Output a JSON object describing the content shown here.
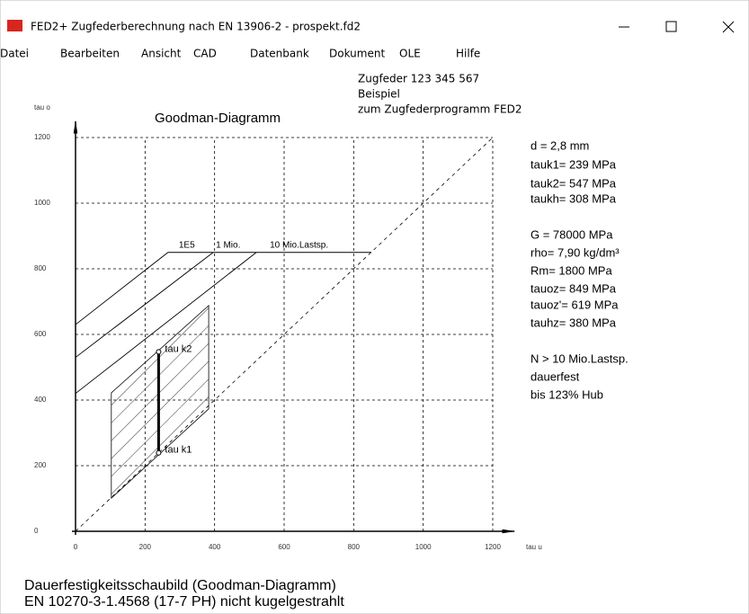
{
  "window": {
    "title": "FED2+  Zugfederberechnung nach EN 13906-2  -  prospekt.fd2"
  },
  "menu": [
    "Datei",
    "Bearbeiten",
    "Ansicht",
    "CAD",
    "Datenbank",
    "Dokument",
    "OLE",
    "Hilfe"
  ],
  "header_lines": [
    "Zugfeder  123 345 567",
    "Beispiel",
    "zum Zugfederprogramm FED2"
  ],
  "chart_data": {
    "type": "line",
    "title": "Goodman-Diagramm",
    "x_label": "tau u",
    "y_label": "tau o",
    "xlim": [
      0,
      1200
    ],
    "ylim": [
      0,
      1200
    ],
    "xticks": [
      0,
      200,
      400,
      600,
      800,
      1000,
      1200
    ],
    "yticks": [
      0,
      200,
      400,
      600,
      800,
      1000,
      1200
    ],
    "grid": true,
    "series": [
      {
        "name": "1E5",
        "color": "#000000",
        "x": [
          0,
          266,
          851
        ],
        "y": [
          630,
          850,
          850
        ]
      },
      {
        "name": "1 Mio.",
        "color": "#000000",
        "x": [
          0,
          396
        ],
        "y": [
          530,
          850
        ]
      },
      {
        "name": "10 Mio.Lastsp.",
        "color": "#000000",
        "x": [
          0,
          520
        ],
        "y": [
          420,
          850
        ]
      }
    ],
    "diagonal": {
      "x": [
        0,
        1200
      ],
      "y": [
        0,
        1200
      ]
    },
    "region": {
      "x": [
        103,
        383,
        383,
        103
      ],
      "y": [
        422,
        688,
        373,
        101
      ]
    },
    "tauk": {
      "x": [
        239,
        239
      ],
      "y": [
        239,
        547
      ],
      "labels": [
        "tau k1",
        "tau k2"
      ]
    }
  },
  "info": [
    [
      "d  = 2,8 mm",
      "tauk1= 239 MPa",
      "tauk2= 547 MPa",
      "taukh= 308 MPa"
    ],
    [
      "G = 78000 MPa",
      "rho=  7,90 kg/dm³",
      "Rm=  1800 MPa",
      "tauoz= 849 MPa",
      "tauoz'= 619 MPa",
      "tauhz= 380 MPa"
    ],
    [
      "N > 10 Mio.Lastsp.",
      "dauerfest",
      "bis 123% Hub"
    ]
  ],
  "footer": [
    "Dauerfestigkeitsschaubild (Goodman-Diagramm)",
    "EN 10270-3-1.4568 (17-7 PH) nicht kugelgestrahlt"
  ]
}
